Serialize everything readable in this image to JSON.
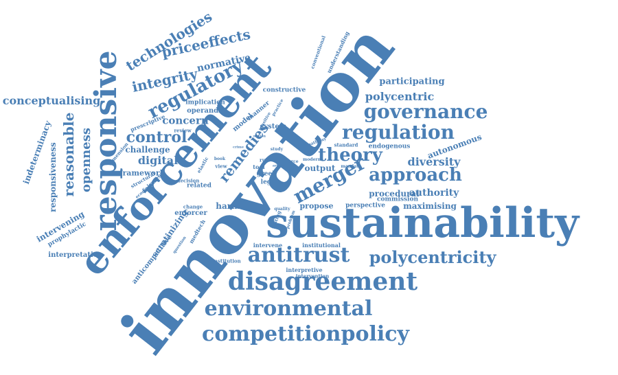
{
  "color": "#4a7fb5",
  "words": [
    {
      "text": "innovation"
    },
    {
      "text": "sustainability"
    },
    {
      "text": "enforcement"
    },
    {
      "text": "responsive"
    },
    {
      "text": "disagreement"
    },
    {
      "text": "antitrust"
    },
    {
      "text": "environmental"
    },
    {
      "text": "competitionpolicy"
    },
    {
      "text": "governance"
    },
    {
      "text": "regulation"
    },
    {
      "text": "merger"
    },
    {
      "text": "theory"
    },
    {
      "text": "approach"
    },
    {
      "text": "polycentricity"
    },
    {
      "text": "regulatory"
    },
    {
      "text": "remedies"
    },
    {
      "text": "control"
    },
    {
      "text": "technologies"
    },
    {
      "text": "priceeffects"
    },
    {
      "text": "integrity"
    },
    {
      "text": "normative"
    },
    {
      "text": "reasonable"
    },
    {
      "text": "openness"
    },
    {
      "text": "conceptualising"
    },
    {
      "text": "polycentric"
    },
    {
      "text": "participating"
    },
    {
      "text": "diversity"
    },
    {
      "text": "autonomous"
    },
    {
      "text": "authority"
    },
    {
      "text": "procedural"
    },
    {
      "text": "maximising"
    },
    {
      "text": "digital"
    },
    {
      "text": "framework"
    },
    {
      "text": "challenge"
    },
    {
      "text": "concern"
    },
    {
      "text": "indeterminacy"
    },
    {
      "text": "responsiveness"
    },
    {
      "text": "intervening"
    },
    {
      "text": "prophylactic"
    },
    {
      "text": "interpretation"
    },
    {
      "text": "anticompetitive"
    },
    {
      "text": "scrutinizing"
    },
    {
      "text": "harm"
    },
    {
      "text": "enforcer"
    },
    {
      "text": "propose"
    },
    {
      "text": "output"
    },
    {
      "text": "perspective"
    },
    {
      "text": "institutional"
    },
    {
      "text": "intervene"
    },
    {
      "text": "interpretive"
    },
    {
      "text": "intervention"
    },
    {
      "text": "institution"
    },
    {
      "text": "constructive"
    },
    {
      "text": "system"
    },
    {
      "text": "model"
    },
    {
      "text": "manner"
    },
    {
      "text": "implication"
    },
    {
      "text": "operandi"
    },
    {
      "text": "prescriptive"
    },
    {
      "text": "review"
    },
    {
      "text": "dimension"
    },
    {
      "text": "structural"
    },
    {
      "text": "economic"
    },
    {
      "text": "fairness"
    },
    {
      "text": "decision"
    },
    {
      "text": "related"
    },
    {
      "text": "greek"
    },
    {
      "text": "legal"
    },
    {
      "text": "tool"
    },
    {
      "text": "rule"
    },
    {
      "text": "view"
    },
    {
      "text": "book"
    },
    {
      "text": "elastic"
    },
    {
      "text": "change"
    },
    {
      "text": "medtech"
    },
    {
      "text": "question"
    },
    {
      "text": "commission"
    },
    {
      "text": "endogenous"
    },
    {
      "text": "standard"
    },
    {
      "text": "mandate"
    },
    {
      "text": "study"
    },
    {
      "text": "lesson"
    },
    {
      "text": "conventional"
    },
    {
      "text": "understanding"
    },
    {
      "text": "quality"
    },
    {
      "text": "problem"
    },
    {
      "text": "testing"
    },
    {
      "text": "modern"
    },
    {
      "text": "pathway"
    },
    {
      "text": "notion"
    },
    {
      "text": "sensitive"
    },
    {
      "text": "practice"
    },
    {
      "text": "force"
    },
    {
      "text": "article"
    },
    {
      "text": "crime"
    }
  ]
}
